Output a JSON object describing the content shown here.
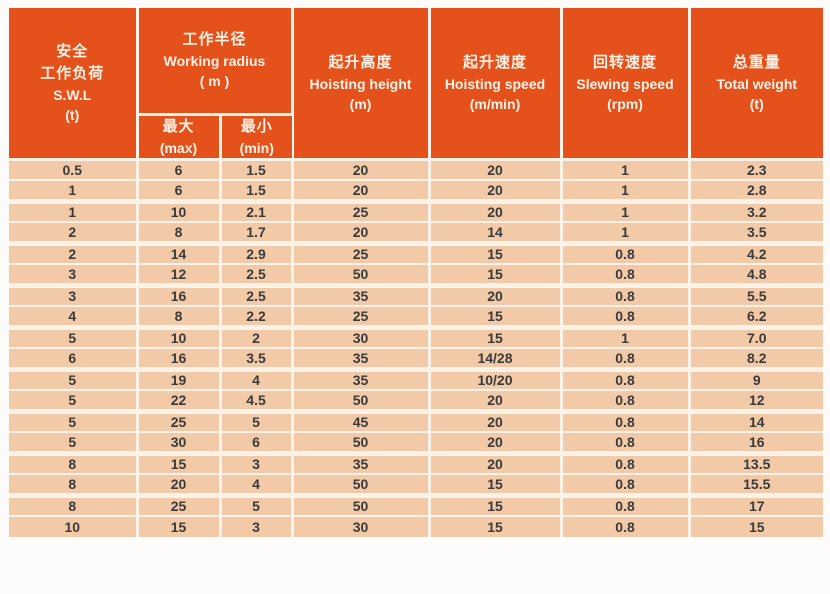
{
  "colors": {
    "header_background": "#e5511b",
    "row_background": "#f3caa7",
    "grid_line": "#fbf3ea",
    "header_text": "#fdf2e7",
    "data_text": "#3a3a3a"
  },
  "header": {
    "swl": [
      "安全",
      "工作负荷",
      "S.W.L",
      "(t)"
    ],
    "working_radius": [
      "工作半径",
      "Working radius",
      "( m )"
    ],
    "radius_max": [
      "最大",
      "(max)"
    ],
    "radius_min": [
      "最小",
      "(min)"
    ],
    "hoisting_height": [
      "起升高度",
      "Hoisting height",
      "(m)"
    ],
    "hoisting_speed": [
      "起升速度",
      "Hoisting speed",
      "(m/min)"
    ],
    "slewing_speed": [
      "回转速度",
      "Slewing speed",
      "(rpm)"
    ],
    "total_weight": [
      "总重量",
      "Total weight",
      "(t)"
    ]
  },
  "chart_data": {
    "type": "table",
    "title": "",
    "columns": [
      "安全工作负荷 S.W.L (t)",
      "工作半径 Working radius (m) - 最大 (max)",
      "工作半径 Working radius (m) - 最小 (min)",
      "起升高度 Hoisting height (m)",
      "起升速度 Hoisting speed (m/min)",
      "回转速度 Slewing speed (rpm)",
      "总重量 Total weight (t)"
    ],
    "rows": [
      [
        "0.5",
        "6",
        "1.5",
        "20",
        "20",
        "1",
        "2.3"
      ],
      [
        "1",
        "6",
        "1.5",
        "20",
        "20",
        "1",
        "2.8"
      ],
      [
        "1",
        "10",
        "2.1",
        "25",
        "20",
        "1",
        "3.2"
      ],
      [
        "2",
        "8",
        "1.7",
        "20",
        "14",
        "1",
        "3.5"
      ],
      [
        "2",
        "14",
        "2.9",
        "25",
        "15",
        "0.8",
        "4.2"
      ],
      [
        "3",
        "12",
        "2.5",
        "50",
        "15",
        "0.8",
        "4.8"
      ],
      [
        "3",
        "16",
        "2.5",
        "35",
        "20",
        "0.8",
        "5.5"
      ],
      [
        "4",
        "8",
        "2.2",
        "25",
        "15",
        "0.8",
        "6.2"
      ],
      [
        "5",
        "10",
        "2",
        "30",
        "15",
        "1",
        "7.0"
      ],
      [
        "6",
        "16",
        "3.5",
        "35",
        "14/28",
        "0.8",
        "8.2"
      ],
      [
        "5",
        "19",
        "4",
        "35",
        "10/20",
        "0.8",
        "9"
      ],
      [
        "5",
        "22",
        "4.5",
        "50",
        "20",
        "0.8",
        "12"
      ],
      [
        "5",
        "25",
        "5",
        "45",
        "20",
        "0.8",
        "14"
      ],
      [
        "5",
        "30",
        "6",
        "50",
        "20",
        "0.8",
        "16"
      ],
      [
        "8",
        "15",
        "3",
        "35",
        "20",
        "0.8",
        "13.5"
      ],
      [
        "8",
        "20",
        "4",
        "50",
        "15",
        "0.8",
        "15.5"
      ],
      [
        "8",
        "25",
        "5",
        "50",
        "15",
        "0.8",
        "17"
      ],
      [
        "10",
        "15",
        "3",
        "30",
        "15",
        "0.8",
        "15"
      ]
    ]
  }
}
